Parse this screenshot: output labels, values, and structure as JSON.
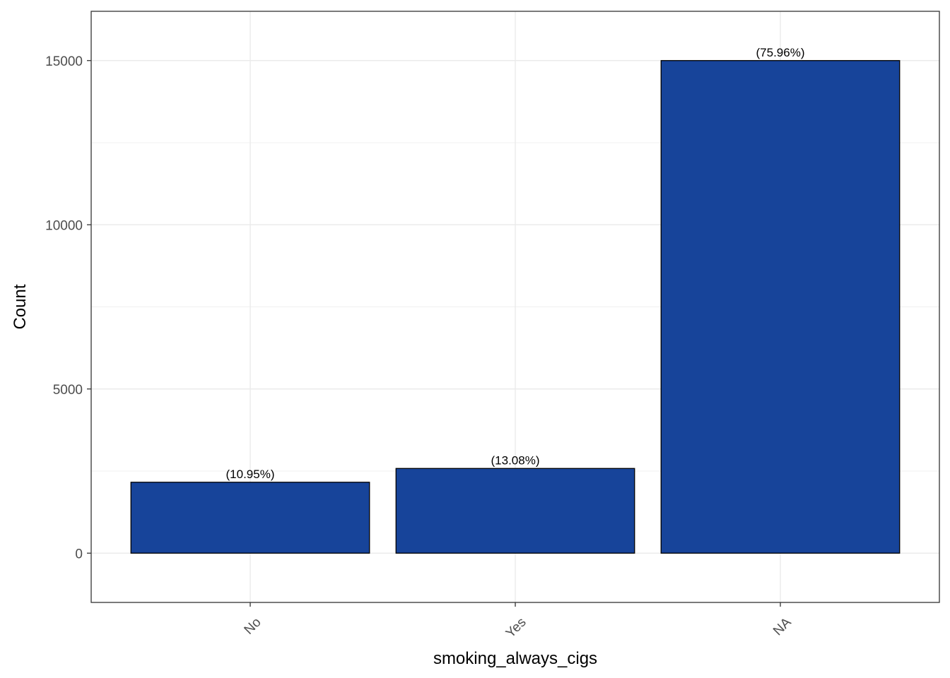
{
  "chart_data": {
    "type": "bar",
    "categories": [
      "No",
      "Yes",
      "NA"
    ],
    "values": [
      2160,
      2580,
      15000
    ],
    "data_labels": [
      "(10.95%)",
      "(13.08%)",
      "(75.96%)"
    ],
    "xlabel": "smoking_always_cigs",
    "ylabel": "Count",
    "ylim": [
      -1500,
      16500
    ],
    "yticks": [
      0,
      5000,
      10000,
      15000
    ],
    "ytick_labels": [
      "0",
      "5000",
      "10000",
      "15000"
    ],
    "x_tick_rotation": "45 degrees",
    "grid": true,
    "legend": "none",
    "colors": {
      "bar_fill": "#17449a",
      "bar_stroke": "#000000",
      "grid": "#ebebeb",
      "panel_border": "#333333"
    }
  }
}
